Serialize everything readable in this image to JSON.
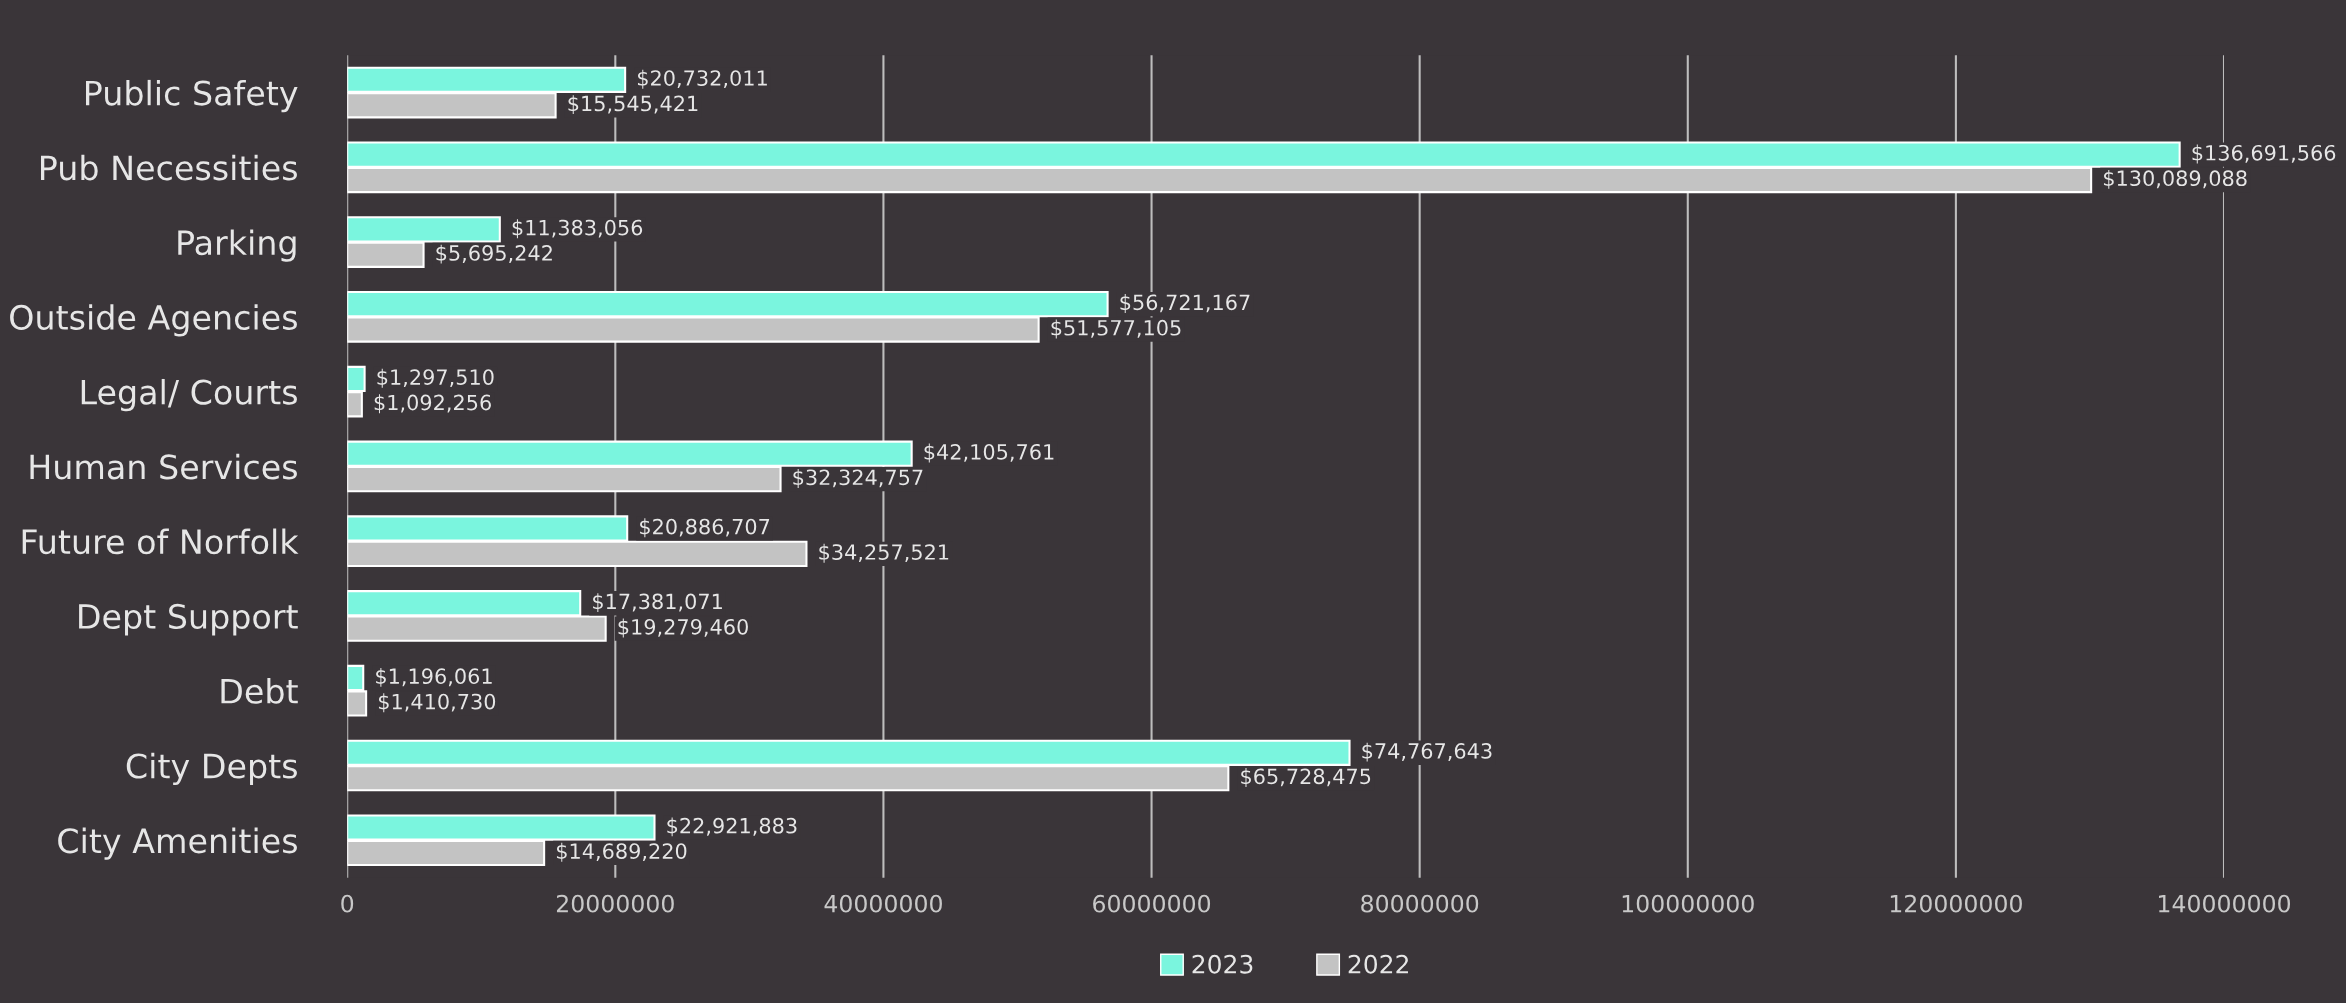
{
  "chart_data": {
    "type": "bar",
    "orientation": "horizontal",
    "categories": [
      "Public Safety",
      "Pub Necessities",
      "Parking",
      "Outside Agencies",
      "Legal/ Courts",
      "Human Services",
      "Future of Norfolk",
      "Dept Support",
      "Debt",
      "City Depts",
      "City Amenities"
    ],
    "series": [
      {
        "name": "2023",
        "color": "#7af5de",
        "values": [
          20732011,
          136691566,
          11383056,
          56721167,
          1297510,
          42105761,
          20886707,
          17381071,
          1196061,
          74767643,
          22921883
        ],
        "value_labels": [
          "$20,732,011",
          "$136,691,566",
          "$11,383,056",
          "$56,721,167",
          "$1,297,510",
          "$42,105,761",
          "$20,886,707",
          "$17,381,071",
          "$1,196,061",
          "$74,767,643",
          "$22,921,883"
        ]
      },
      {
        "name": "2022",
        "color": "#c3c3c3",
        "values": [
          15545421,
          130089088,
          5695242,
          51577105,
          1092256,
          32324757,
          34257521,
          19279460,
          1410730,
          65728475,
          14689220
        ],
        "value_labels": [
          "$15,545,421",
          "$130,089,088",
          "$5,695,242",
          "$51,577,105",
          "$1,092,256",
          "$32,324,757",
          "$34,257,521",
          "$19,279,460",
          "$1,410,730",
          "$65,728,475",
          "$14,689,220"
        ]
      }
    ],
    "xlim": [
      0,
      140000000
    ],
    "xticks": [
      0,
      20000000,
      40000000,
      60000000,
      80000000,
      100000000,
      120000000,
      140000000
    ],
    "grid": "x",
    "legend": "bottom"
  }
}
